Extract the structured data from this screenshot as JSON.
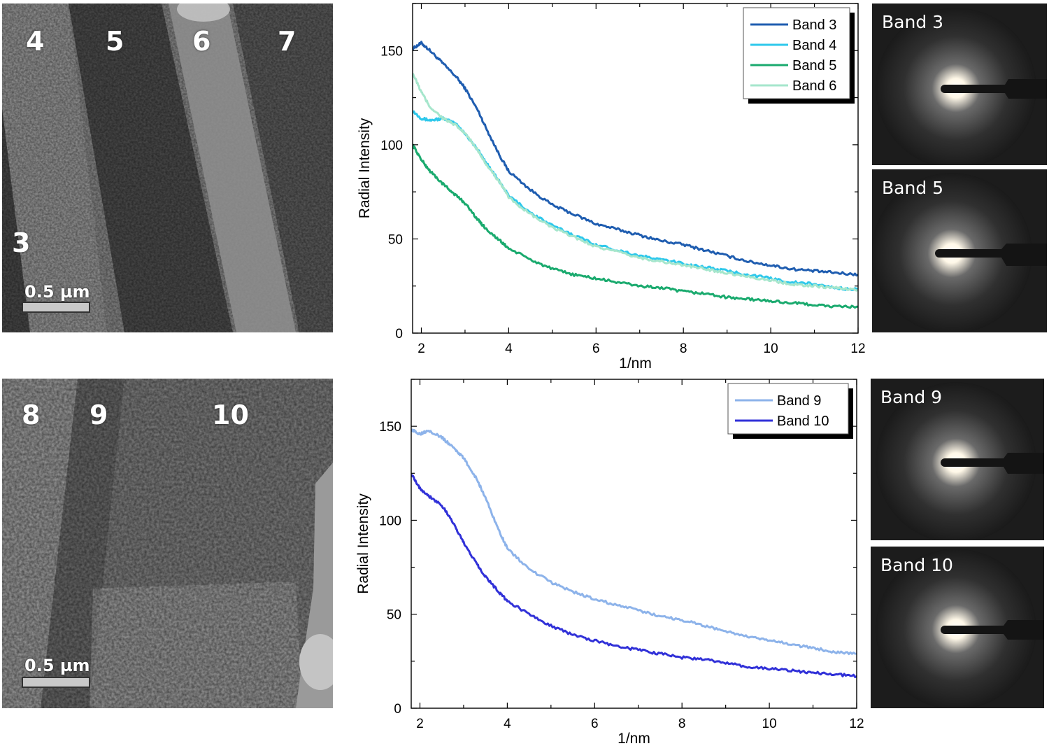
{
  "top_row": {
    "micrograph": {
      "band_labels": [
        "4",
        "5",
        "6",
        "7",
        "3"
      ],
      "scale_bar_label": "0.5 µm"
    },
    "diffraction": [
      {
        "label": "Band 3"
      },
      {
        "label": "Band 5"
      }
    ]
  },
  "bottom_row": {
    "micrograph": {
      "band_labels": [
        "8",
        "9",
        "10"
      ],
      "scale_bar_label": "0.5 µm"
    },
    "diffraction": [
      {
        "label": "Band 9"
      },
      {
        "label": "Band 10"
      }
    ]
  },
  "chart_data": [
    {
      "type": "line",
      "xlabel": "1/nm",
      "ylabel": "Radial Intensity",
      "xlim": [
        1.8,
        12
      ],
      "ylim": [
        0,
        175
      ],
      "xticks": [
        2,
        4,
        6,
        8,
        10,
        12
      ],
      "yticks": [
        0,
        50,
        100,
        150
      ],
      "legend_position": "top-right",
      "x": [
        1.8,
        2.0,
        2.2,
        2.5,
        2.8,
        3.0,
        3.3,
        3.5,
        3.8,
        4.0,
        4.5,
        5.0,
        5.5,
        6.0,
        6.5,
        7.0,
        7.5,
        8.0,
        8.5,
        9.0,
        9.5,
        10.0,
        10.5,
        11.0,
        11.5,
        12.0
      ],
      "series": [
        {
          "name": "Band 3",
          "color": "#1f5db0",
          "values": [
            151,
            154,
            150,
            143,
            136,
            130,
            118,
            108,
            94,
            86,
            76,
            68,
            63,
            58,
            55,
            52,
            49,
            47,
            44,
            41,
            38,
            36,
            34,
            33,
            32,
            31
          ]
        },
        {
          "name": "Band 4",
          "color": "#2ec8eb",
          "values": [
            118,
            114,
            113,
            114,
            111,
            106,
            97,
            90,
            80,
            73,
            64,
            57,
            52,
            47,
            44,
            41,
            39,
            37,
            35,
            33,
            31,
            29,
            27,
            26,
            24,
            23
          ]
        },
        {
          "name": "Band 5",
          "color": "#1aaa6e",
          "values": [
            100,
            92,
            86,
            79,
            73,
            69,
            60,
            55,
            49,
            45,
            39,
            34,
            31,
            29,
            27,
            25,
            24,
            22,
            21,
            19,
            18,
            17,
            16,
            15,
            14,
            14
          ]
        },
        {
          "name": "Band 6",
          "color": "#a6e6cc",
          "values": [
            138,
            128,
            120,
            114,
            110,
            106,
            97,
            89,
            80,
            72,
            63,
            56,
            51,
            46,
            43,
            40,
            38,
            36,
            34,
            32,
            30,
            28,
            26,
            25,
            24,
            23
          ]
        }
      ]
    },
    {
      "type": "line",
      "xlabel": "1/nm",
      "ylabel": "Radial Intensity",
      "xlim": [
        1.8,
        12
      ],
      "ylim": [
        0,
        175
      ],
      "xticks": [
        2,
        4,
        6,
        8,
        10,
        12
      ],
      "yticks": [
        0,
        50,
        100,
        150
      ],
      "legend_position": "top-right",
      "x": [
        1.8,
        2.0,
        2.2,
        2.5,
        2.8,
        3.0,
        3.3,
        3.5,
        3.8,
        4.0,
        4.5,
        5.0,
        5.5,
        6.0,
        6.5,
        7.0,
        7.5,
        8.0,
        8.5,
        9.0,
        9.5,
        10.0,
        10.5,
        11.0,
        11.5,
        12.0
      ],
      "series": [
        {
          "name": "Band 9",
          "color": "#8db3ea",
          "values": [
            148,
            146,
            148,
            144,
            138,
            133,
            122,
            112,
            95,
            85,
            74,
            67,
            62,
            58,
            55,
            52,
            49,
            47,
            44,
            41,
            38,
            36,
            34,
            32,
            30,
            29
          ]
        },
        {
          "name": "Band 10",
          "color": "#3131d8",
          "values": [
            125,
            117,
            113,
            108,
            97,
            88,
            77,
            70,
            62,
            57,
            50,
            44,
            39,
            36,
            33,
            31,
            29,
            27,
            26,
            24,
            22,
            21,
            20,
            19,
            18,
            17
          ]
        }
      ]
    }
  ]
}
